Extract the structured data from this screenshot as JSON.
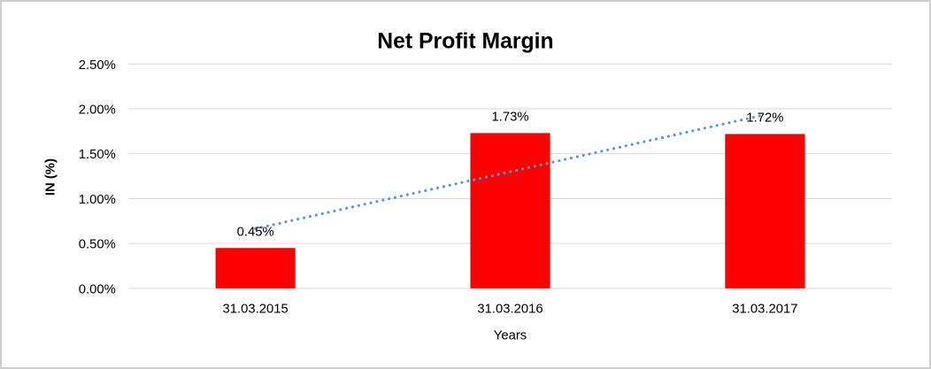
{
  "chart_data": {
    "type": "bar",
    "title": "Net Profit Margin",
    "xlabel": "Years",
    "ylabel": "IN (%)",
    "categories": [
      "31.03.2015",
      "31.03.2016",
      "31.03.2017"
    ],
    "series": [
      {
        "name": "Net Profit Margin",
        "values": [
          0.45,
          1.73,
          1.72
        ],
        "data_labels": [
          "0.45%",
          "1.73%",
          "1.72%"
        ],
        "color": "#FF0000"
      }
    ],
    "y_ticks": [
      "0.00%",
      "0.50%",
      "1.00%",
      "1.50%",
      "2.00%",
      "2.50%"
    ],
    "ylim": [
      0,
      2.5
    ],
    "grid": "horizontal",
    "gridline_color": "#D9D9D9",
    "legend": "none",
    "trendline": {
      "fit": "linear",
      "style": "dotted",
      "color": "#5B9BD5",
      "endpoints_pct": [
        0.665,
        1.935
      ]
    }
  }
}
